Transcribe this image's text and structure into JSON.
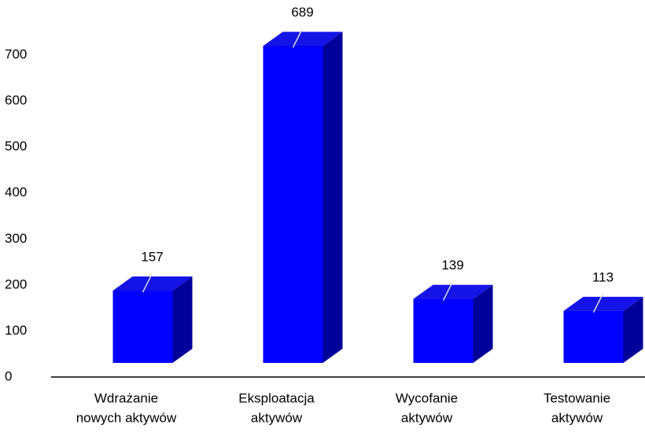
{
  "chart_data": {
    "type": "bar3d",
    "categories": [
      [
        "Wdrażanie",
        "nowych aktywów"
      ],
      [
        "Eksploatacja",
        "aktywów"
      ],
      [
        "Wycofanie",
        "aktywów"
      ],
      [
        "Testowanie",
        "aktywów"
      ]
    ],
    "values": [
      157,
      689,
      139,
      113
    ],
    "color": "#0000ff",
    "ylim": [
      0,
      700
    ],
    "yticks": [
      0,
      100,
      200,
      300,
      400,
      500,
      600,
      700
    ],
    "grid": false
  }
}
